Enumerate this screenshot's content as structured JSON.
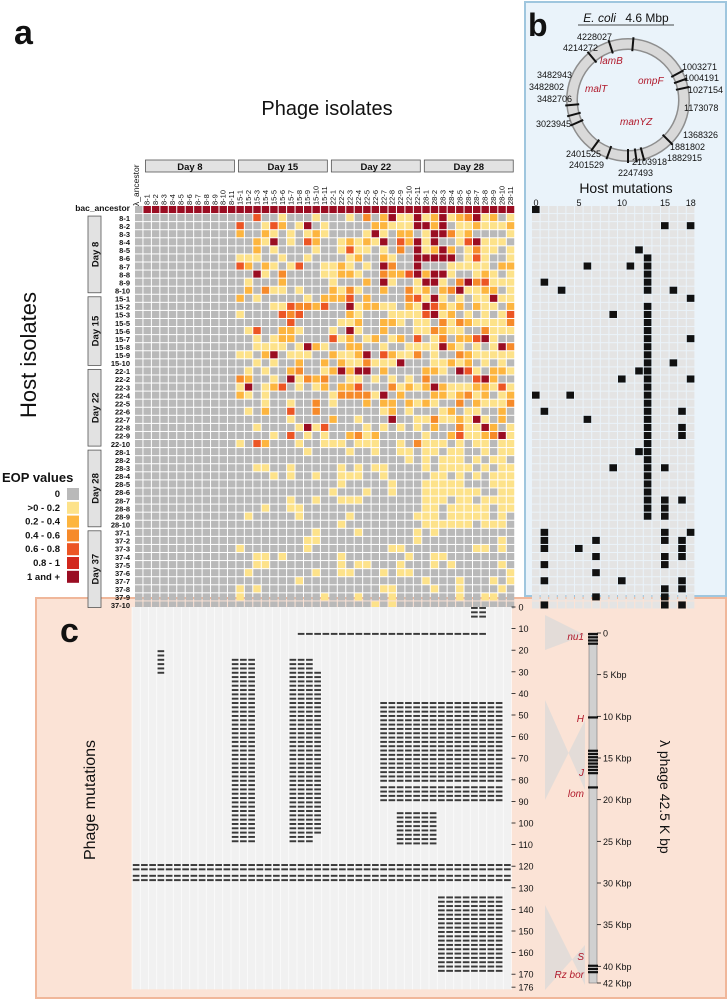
{
  "panel_labels": {
    "a": "a",
    "b": "b",
    "c": "c"
  },
  "panel_a": {
    "title": "Phage isolates",
    "y_title": "Host isolates",
    "ancestor_col": "λ_ancestor",
    "ancestor_row": "bac_ancestor",
    "day_groups": [
      "Day 8",
      "Day 15",
      "Day 22",
      "Day 28"
    ],
    "columns": [
      "8-1",
      "8-2",
      "8-3",
      "8-4",
      "8-5",
      "8-6",
      "8-7",
      "8-8",
      "8-9",
      "8-10",
      "8-11",
      "15-1",
      "15-2",
      "15-3",
      "15-4",
      "15-5",
      "15-6",
      "15-7",
      "15-8",
      "15-9",
      "15-10",
      "15-11",
      "22-1",
      "22-2",
      "22-3",
      "22-4",
      "22-5",
      "22-6",
      "22-7",
      "22-8",
      "22-9",
      "22-10",
      "22-11",
      "28-1",
      "28-2",
      "28-3",
      "28-4",
      "28-5",
      "28-6",
      "28-7",
      "28-8",
      "28-9",
      "28-10",
      "28-11"
    ],
    "row_groups": [
      "Day 8",
      "Day 15",
      "Day 22",
      "Day 28",
      "Day 37"
    ],
    "rows": [
      "8-1",
      "8-2",
      "8-3",
      "8-4",
      "8-5",
      "8-6",
      "8-7",
      "8-8",
      "8-9",
      "8-10",
      "15-1",
      "15-2",
      "15-3",
      "15-5",
      "15-6",
      "15-7",
      "15-8",
      "15-9",
      "15-10",
      "22-1",
      "22-2",
      "22-3",
      "22-4",
      "22-5",
      "22-6",
      "22-7",
      "22-8",
      "22-9",
      "22-10",
      "28-1",
      "28-2",
      "28-3",
      "28-4",
      "28-5",
      "28-6",
      "28-7",
      "28-8",
      "28-9",
      "28-10",
      "37-1",
      "37-2",
      "37-3",
      "37-4",
      "37-5",
      "37-6",
      "37-7",
      "37-8",
      "37-9",
      "37-10"
    ],
    "legend_title": "EOP values",
    "legend": [
      {
        "label": "0",
        "color": "#b9b9b9"
      },
      {
        "label": ">0 - 0.2",
        "color": "#fde28a"
      },
      {
        "label": "0.2 - 0.4",
        "color": "#fdb53f"
      },
      {
        "label": "0.4 - 0.6",
        "color": "#f68a2a"
      },
      {
        "label": "0.6 - 0.8",
        "color": "#ec5524"
      },
      {
        "label": "0.8 - 1",
        "color": "#d2271d"
      },
      {
        "label": "1 and +",
        "color": "#9a0d22"
      }
    ]
  },
  "panel_b": {
    "genome_prefix": "E. coli",
    "genome_size": "4.6 Mbp",
    "genes": [
      "lamB",
      "ompF",
      "malT",
      "manYZ"
    ],
    "positions_left": [
      "4228027",
      "4214272",
      "3482943",
      "3482802",
      "3482706",
      "3023945"
    ],
    "positions_right": [
      "1003271",
      "1004191",
      "1027154",
      "1173078",
      "1368326",
      "1881802",
      "1882915"
    ],
    "positions_bottom": [
      "2401525",
      "2401529",
      "2103918",
      "2247493"
    ],
    "mutations_title": "Host mutations",
    "mutation_ticks": [
      "0",
      "5",
      "10",
      "15",
      "18"
    ]
  },
  "panel_c": {
    "y_title": "Phage mutations",
    "y_ticks": [
      "0",
      "10",
      "20",
      "30",
      "40",
      "50",
      "60",
      "70",
      "80",
      "90",
      "100",
      "110",
      "120",
      "130",
      "140",
      "150",
      "160",
      "170",
      "176"
    ],
    "genome_title": "λ phage 42.5 K bp",
    "genome_ticks": [
      "0",
      "5 Kbp",
      "10 Kbp",
      "15 Kbp",
      "20 Kbp",
      "25 Kbp",
      "30 Kbp",
      "35 Kbp",
      "40 Kbp",
      "42 Kbp"
    ],
    "genes": [
      "nu1",
      "H",
      "J",
      "lom",
      "S",
      "Rz bor"
    ]
  }
}
